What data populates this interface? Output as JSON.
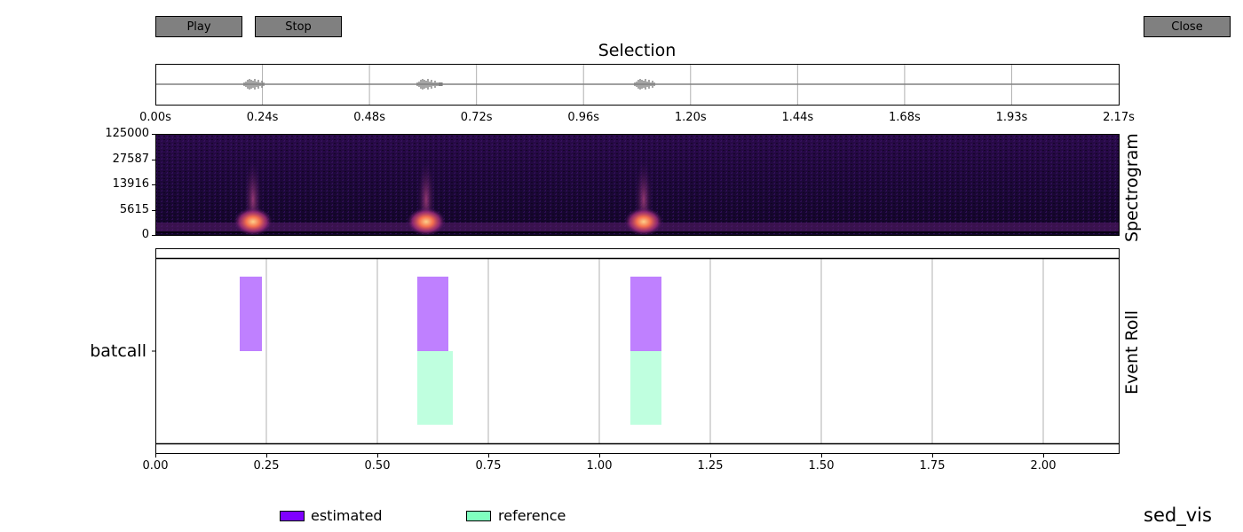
{
  "buttons": {
    "play": "Play",
    "stop": "Stop",
    "close": "Close"
  },
  "selection": {
    "title": "Selection",
    "time_ticks": [
      "0.00s",
      "0.24s",
      "0.48s",
      "0.72s",
      "0.96s",
      "1.20s",
      "1.44s",
      "1.68s",
      "1.93s",
      "2.17s"
    ]
  },
  "spectrogram": {
    "label": "Spectrogram",
    "freq_ticks": [
      "125000",
      "27587",
      "13916",
      "5615",
      "0"
    ]
  },
  "event_roll": {
    "label": "Event Roll",
    "class_label": "batcall",
    "x_ticks": [
      "0.00",
      "0.25",
      "0.50",
      "0.75",
      "1.00",
      "1.25",
      "1.50",
      "1.75",
      "2.00"
    ]
  },
  "legend": {
    "estimated": "estimated",
    "reference": "reference"
  },
  "footer": {
    "name": "sed_vis"
  },
  "colors": {
    "button": "#808080",
    "estimated": "#7f00ff",
    "reference": "#80ffbf",
    "estimated_fill": "#bf80ff",
    "reference_fill": "#bfffdf",
    "grid": "#b0b0b0",
    "waveform": "#808080"
  },
  "chart_data": {
    "type": "timeline",
    "x_range_seconds": [
      0,
      2.17
    ],
    "class": "batcall",
    "estimated": [
      {
        "onset": 0.19,
        "offset": 0.24
      },
      {
        "onset": 0.59,
        "offset": 0.66
      },
      {
        "onset": 1.07,
        "offset": 1.14
      }
    ],
    "reference": [
      {
        "onset": 0.59,
        "offset": 0.67
      },
      {
        "onset": 1.07,
        "offset": 1.14
      }
    ],
    "waveform_bursts_seconds": [
      0.22,
      0.61,
      1.1
    ]
  }
}
